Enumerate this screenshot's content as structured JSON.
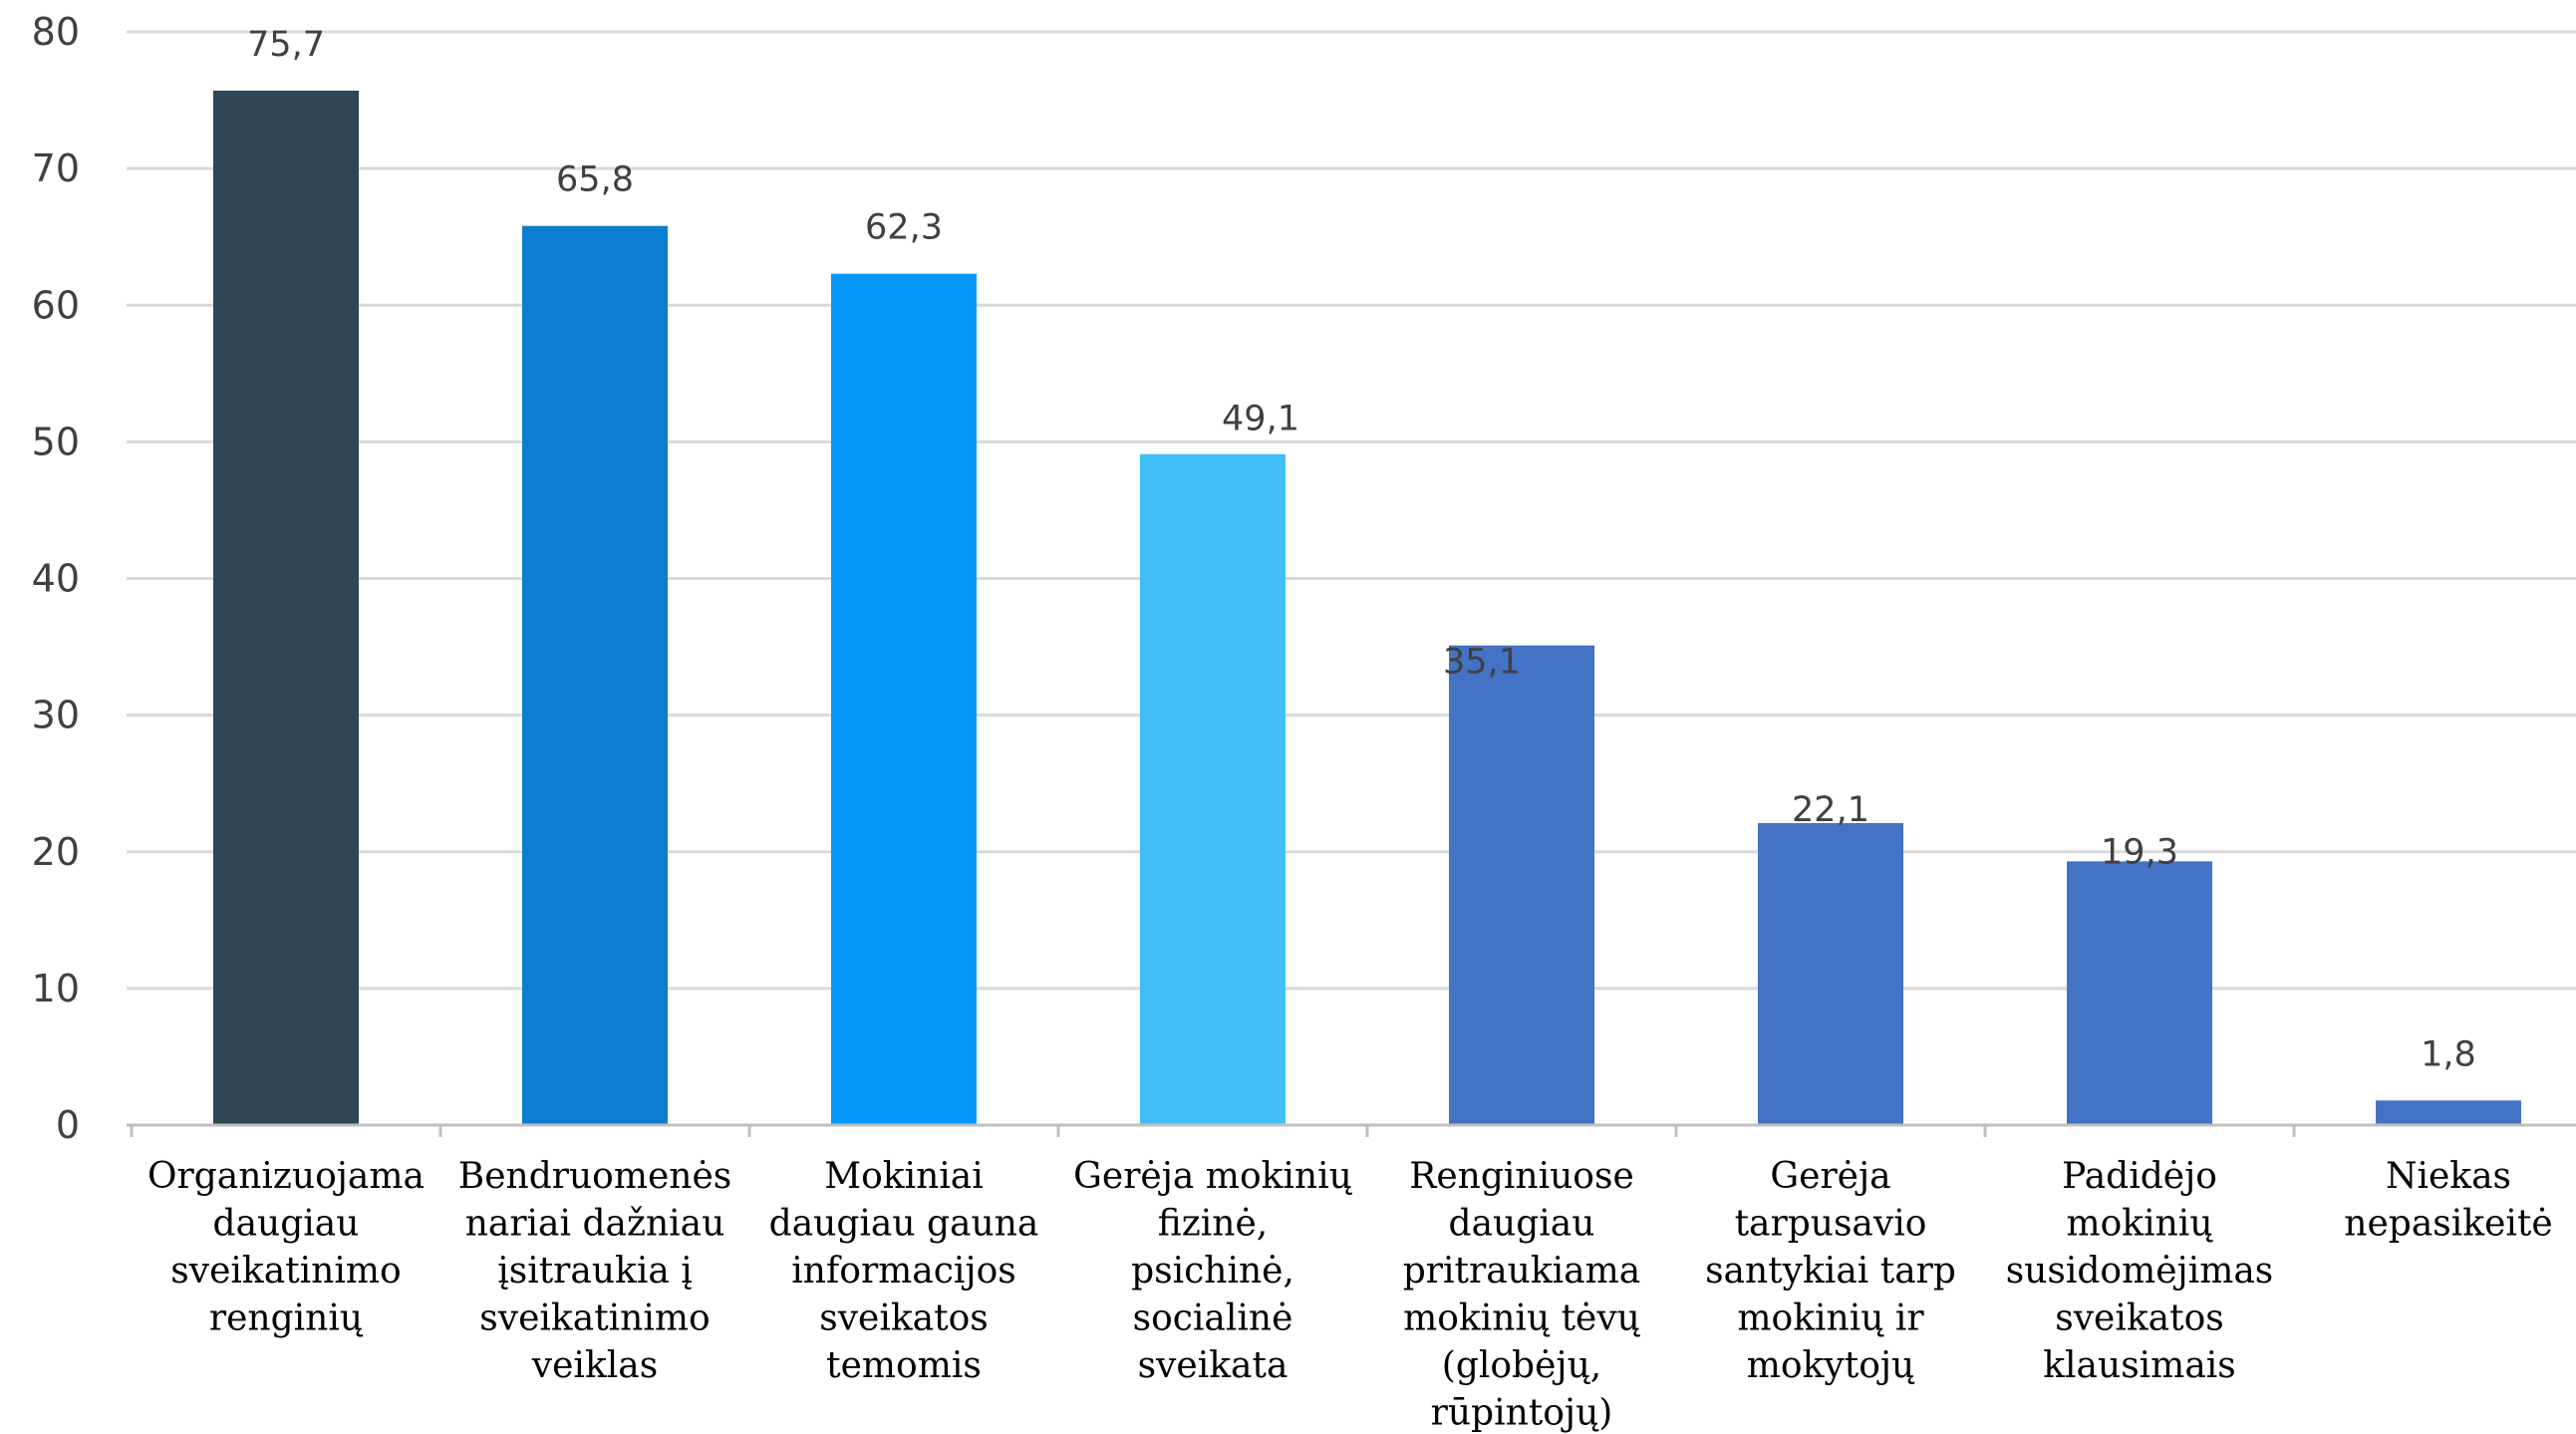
{
  "chart_data": {
    "type": "bar",
    "title": "",
    "xlabel": "",
    "ylabel": "",
    "ylim": [
      0,
      80
    ],
    "yticks": [
      "0",
      "10",
      "20",
      "30",
      "40",
      "50",
      "60",
      "70",
      "80"
    ],
    "grid": true,
    "legend": "none",
    "categories": [
      [
        "Organizuojama",
        "daugiau",
        "sveikatinimo",
        "renginių"
      ],
      [
        "Bendruomenės",
        "nariai dažniau",
        "įsitraukia į",
        "sveikatinimo",
        "veiklas"
      ],
      [
        "Mokiniai",
        "daugiau gauna",
        "informacijos",
        "sveikatos",
        "temomis"
      ],
      [
        "Gerėja mokinių",
        "fizinė,",
        "psichinė,",
        "socialinė",
        "sveikata"
      ],
      [
        "Renginiuose",
        "daugiau",
        "pritraukiama",
        "mokinių tėvų",
        "(globėjų,",
        "rūpintojų)"
      ],
      [
        "Gerėja",
        "tarpusavio",
        "santykiai tarp",
        "mokinių ir",
        "mokytojų"
      ],
      [
        "Padidėjo",
        "mokinių",
        "susidomėjimas",
        "sveikatos",
        "klausimais"
      ],
      [
        "Niekas",
        "nepasikeitė"
      ]
    ],
    "values": [
      75.7,
      65.8,
      62.3,
      49.1,
      35.1,
      22.1,
      19.3,
      1.8
    ],
    "data_labels": [
      "75,7",
      "65,8",
      "62,3",
      "49,1",
      "35,1",
      "22,1",
      "19,3",
      "1,8"
    ],
    "bar_colors": [
      "#2f4654",
      "#0a7dd1",
      "#0596fa",
      "#41bef8",
      "#4472c4",
      "#4472c4",
      "#4472c4",
      "#4472c4"
    ]
  }
}
